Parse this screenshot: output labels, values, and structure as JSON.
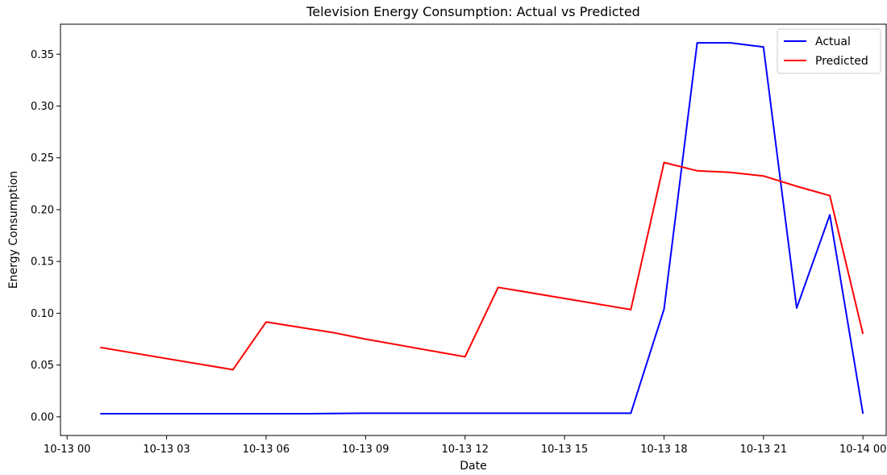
{
  "chart_data": {
    "type": "line",
    "title": "Television Energy Consumption: Actual vs Predicted",
    "xlabel": "Date",
    "ylabel": "Energy Consumption",
    "x_tick_labels": [
      "10-13 00",
      "10-13 03",
      "10-13 06",
      "10-13 09",
      "10-13 12",
      "10-13 15",
      "10-13 18",
      "10-13 21",
      "10-14 00"
    ],
    "x_ticks": [
      "2023-10-13 00:00",
      "2023-10-13 03:00",
      "2023-10-13 06:00",
      "2023-10-13 09:00",
      "2023-10-13 12:00",
      "2023-10-13 15:00",
      "2023-10-13 18:00",
      "2023-10-13 21:00",
      "2023-10-14 00:00"
    ],
    "y_tick_labels": [
      "0.00",
      "0.05",
      "0.10",
      "0.15",
      "0.20",
      "0.25",
      "0.30",
      "0.35"
    ],
    "y_ticks": [
      0.0,
      0.05,
      0.1,
      0.15,
      0.2,
      0.25,
      0.3,
      0.35
    ],
    "xlim": [
      "2023-10-12 23:48",
      "2023-10-14 00:42"
    ],
    "ylim": [
      -0.018,
      0.379
    ],
    "grid": false,
    "legend_position": "top-right",
    "x": [
      "2023-10-13 01:00",
      "2023-10-13 05:00",
      "2023-10-13 06:00",
      "2023-10-13 07:00",
      "2023-10-13 08:00",
      "2023-10-13 09:00",
      "2023-10-13 12:00",
      "2023-10-13 13:00",
      "2023-10-13 17:00",
      "2023-10-13 18:00",
      "2023-10-13 19:00",
      "2023-10-13 20:00",
      "2023-10-13 21:00",
      "2023-10-13 22:00",
      "2023-10-13 23:00",
      "2023-10-14 00:00"
    ],
    "series": [
      {
        "name": "Actual",
        "color": "#0000ff",
        "values": [
          0.003,
          0.003,
          0.003,
          0.003,
          0.0032,
          0.0035,
          0.0035,
          0.0035,
          0.0035,
          0.104,
          0.361,
          0.361,
          0.357,
          0.105,
          0.195,
          0.003
        ]
      },
      {
        "name": "Predicted",
        "color": "#ff0000",
        "values": [
          0.067,
          0.0455,
          0.0915,
          0.0865,
          0.0815,
          0.075,
          0.058,
          0.125,
          0.1035,
          0.2455,
          0.2375,
          0.236,
          0.2325,
          0.2225,
          0.2135,
          0.08
        ]
      }
    ]
  }
}
